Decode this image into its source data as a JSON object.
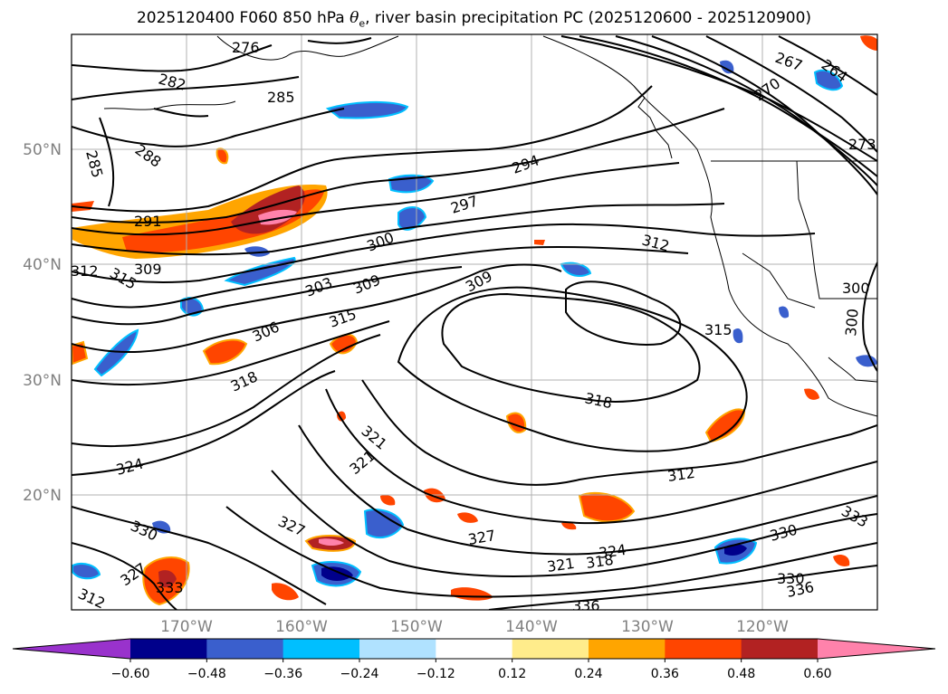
{
  "title": {
    "prefix": "2025120400 F060 850 hPa ",
    "symbol": "θ",
    "symbol_sub": "e",
    "suffix": ", river basin precipitation PC (2025120600 - 2025120900)"
  },
  "map": {
    "projection": "lat-lon",
    "lon_range": [
      -180,
      -110
    ],
    "lat_range": [
      10,
      60
    ],
    "grid": true,
    "lat_labels": [
      "50°N",
      "40°N",
      "30°N",
      "20°N"
    ],
    "lon_labels": [
      "170°W",
      "160°W",
      "150°W",
      "140°W",
      "130°W",
      "120°W"
    ],
    "contour_field": "850 hPa theta-e (K)",
    "contour_labels": [
      "276",
      "282",
      "285",
      "285",
      "288",
      "291",
      "294",
      "297",
      "300",
      "303",
      "306",
      "309",
      "309",
      "309",
      "312",
      "315",
      "315",
      "318",
      "318",
      "321",
      "321",
      "324",
      "327",
      "327",
      "330",
      "330",
      "333",
      "336",
      "336",
      "264",
      "267",
      "270",
      "273",
      "300",
      "300",
      "312",
      "312",
      "318",
      "321",
      "324",
      "327",
      "330",
      "333",
      "312",
      "315"
    ]
  },
  "colorbar": {
    "ticks": [
      "−0.60",
      "−0.48",
      "−0.36",
      "−0.24",
      "−0.12",
      "0.12",
      "0.24",
      "0.36",
      "0.48",
      "0.60"
    ],
    "colors": [
      "#9932CC",
      "#00008B",
      "#3A5FCD",
      "#00BFFF",
      "#B0E2FF",
      "#FFFFFF",
      "#FFEC8B",
      "#FFA500",
      "#FF4500",
      "#B22222",
      "#FF82AB"
    ],
    "extend": "both"
  }
}
